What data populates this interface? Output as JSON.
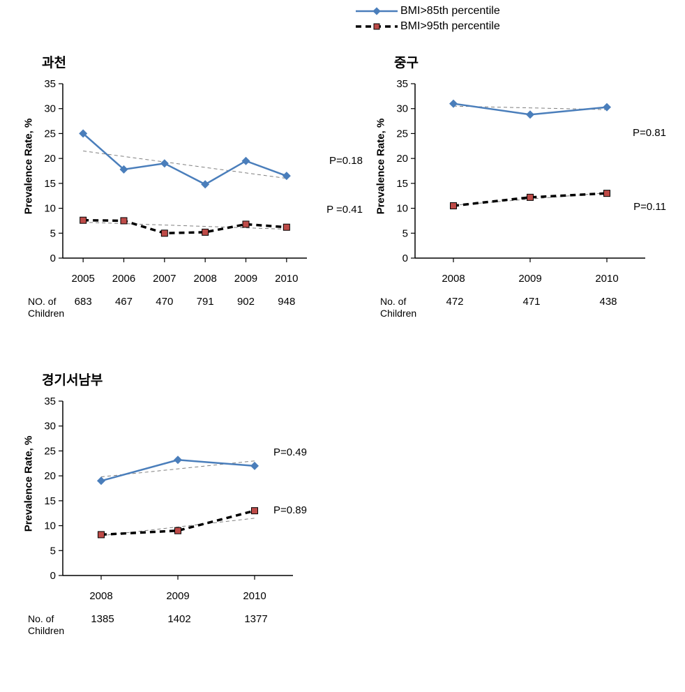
{
  "legend": {
    "items": [
      {
        "label": "BMI>85th percentile",
        "color": "#4a7ebb",
        "marker": "diamond",
        "lineWidth": 2.5,
        "dash": "none"
      },
      {
        "label": "BMI>95th percentile",
        "color": "#000000",
        "markerColor": "#be4b48",
        "marker": "square",
        "lineWidth": 3.5,
        "dash": "8,6"
      }
    ]
  },
  "global": {
    "background_color": "#ffffff",
    "axis_color": "#000000",
    "tick_font_size": 15,
    "axis_label_font_size": 15,
    "title_font_size": 19,
    "title_font_weight": "bold",
    "grid_on": false,
    "trend_line_color": "#7f7f7f",
    "trend_line_dash": "5,4",
    "trend_line_width": 1
  },
  "charts": {
    "gwacheon": {
      "title": "과천",
      "type": "line",
      "ylabel": "Prevalence Rate, %",
      "ylim": [
        0,
        35
      ],
      "ytick_step": 5,
      "years": [
        "2005",
        "2006",
        "2007",
        "2008",
        "2009",
        "2010"
      ],
      "children_label": "NO. of\nChildren",
      "children": [
        "683",
        "467",
        "470",
        "791",
        "902",
        "948"
      ],
      "series": [
        {
          "values": [
            25.0,
            17.8,
            19.0,
            14.8,
            19.5,
            16.5
          ],
          "color": "#4a7ebb",
          "marker": "diamond",
          "lineWidth": 2.5,
          "dash": "none",
          "trend": {
            "y0": 21.5,
            "y1": 16.0
          },
          "p_label": "P=0.18"
        },
        {
          "values": [
            7.6,
            7.5,
            5.0,
            5.2,
            6.8,
            6.2
          ],
          "color": "#000000",
          "markerColor": "#be4b48",
          "marker": "square",
          "lineWidth": 3.5,
          "dash": "8,6",
          "trend": {
            "y0": 7.2,
            "y1": 5.8
          },
          "p_label": "P =0.41"
        }
      ]
    },
    "junggu": {
      "title": "중구",
      "type": "line",
      "ylabel": "Prevalence Rate, %",
      "ylim": [
        0,
        35
      ],
      "ytick_step": 5,
      "years": [
        "2008",
        "2009",
        "2010"
      ],
      "children_label": "No. of\nChildren",
      "children": [
        "472",
        "471",
        "438"
      ],
      "series": [
        {
          "values": [
            31.0,
            28.8,
            30.3
          ],
          "color": "#4a7ebb",
          "marker": "diamond",
          "lineWidth": 2.5,
          "dash": "none",
          "trend": {
            "y0": 30.5,
            "y1": 29.8
          },
          "p_label": "P=0.81"
        },
        {
          "values": [
            10.5,
            12.2,
            13.0
          ],
          "color": "#000000",
          "markerColor": "#be4b48",
          "marker": "square",
          "lineWidth": 3.5,
          "dash": "8,6",
          "trend": {
            "y0": 10.6,
            "y1": 13.1
          },
          "p_label": "P=0.11"
        }
      ]
    },
    "gyeonggi": {
      "title": "경기서남부",
      "type": "line",
      "ylabel": "Prevalence Rate, %",
      "ylim": [
        0,
        35
      ],
      "ytick_step": 5,
      "years": [
        "2008",
        "2009",
        "2010"
      ],
      "children_label": "No. of\nChildren",
      "children": [
        "1385",
        "1402",
        "1377"
      ],
      "series": [
        {
          "values": [
            19.0,
            23.2,
            22.0
          ],
          "color": "#4a7ebb",
          "marker": "diamond",
          "lineWidth": 2.5,
          "dash": "none",
          "trend": {
            "y0": 19.8,
            "y1": 23.0
          },
          "p_label": "P=0.49"
        },
        {
          "values": [
            8.2,
            9.0,
            13.0
          ],
          "color": "#000000",
          "markerColor": "#be4b48",
          "marker": "square",
          "lineWidth": 3.5,
          "dash": "8,6",
          "trend": {
            "y0": 8.0,
            "y1": 11.5
          },
          "p_label": "P=0.89"
        }
      ]
    }
  }
}
